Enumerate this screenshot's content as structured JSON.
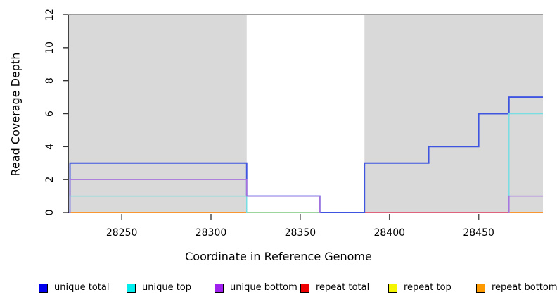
{
  "chart_data": {
    "type": "line",
    "style": "step",
    "title": "",
    "xlabel": "Coordinate in Reference Genome",
    "ylabel": "Read Coverage Depth",
    "xlim": [
      28220,
      28486
    ],
    "ylim": [
      0,
      12
    ],
    "x_ticks": [
      28250,
      28300,
      28350,
      28400,
      28450
    ],
    "y_ticks": [
      0,
      2,
      4,
      6,
      8,
      10,
      12
    ],
    "grid": false,
    "legend_position": "bottom",
    "shade_color": "#d9d9d9",
    "shaded_regions": [
      {
        "from": 28220,
        "to": 28320
      },
      {
        "from": 28386,
        "to": 28486
      }
    ],
    "top_boundary_line": {
      "depth": 12,
      "color": "#7d7d7d"
    },
    "series": [
      {
        "name": "unique total",
        "legend_color": "#0000ee",
        "line_color": "#3f55e0",
        "points": [
          [
            28220,
            0
          ],
          [
            28221,
            0
          ],
          [
            28221,
            3
          ],
          [
            28320,
            3
          ],
          [
            28320,
            1
          ],
          [
            28361,
            1
          ],
          [
            28361,
            0
          ],
          [
            28386,
            0
          ],
          [
            28386,
            3
          ],
          [
            28422,
            3
          ],
          [
            28422,
            4
          ],
          [
            28450,
            4
          ],
          [
            28450,
            6
          ],
          [
            28467,
            6
          ],
          [
            28467,
            7
          ],
          [
            28486,
            7
          ]
        ]
      },
      {
        "name": "unique top",
        "legend_color": "#00eeee",
        "line_color": "#76dde2",
        "points": [
          [
            28220,
            0
          ],
          [
            28221,
            0
          ],
          [
            28221,
            1
          ],
          [
            28320,
            1
          ],
          [
            28320,
            0
          ],
          [
            28467,
            0
          ],
          [
            28467,
            6
          ],
          [
            28486,
            6
          ]
        ],
        "visible_paths": [
          [
            [
              28220,
              0
            ],
            [
              28221,
              0
            ],
            [
              28221,
              1
            ],
            [
              28320,
              1
            ],
            [
              28320,
              0
            ]
          ],
          [
            [
              28467,
              0
            ],
            [
              28467,
              6
            ],
            [
              28486,
              6
            ]
          ]
        ]
      },
      {
        "name": "unique bottom",
        "legend_color": "#a020f0",
        "line_color": "#a873de",
        "points": [
          [
            28220,
            0
          ],
          [
            28221,
            0
          ],
          [
            28221,
            2
          ],
          [
            28320,
            2
          ],
          [
            28320,
            1
          ],
          [
            28361,
            1
          ],
          [
            28361,
            0
          ],
          [
            28467,
            0
          ],
          [
            28467,
            1
          ],
          [
            28486,
            1
          ]
        ],
        "visible_paths": [
          [
            [
              28220,
              0
            ],
            [
              28221,
              0
            ],
            [
              28221,
              2
            ],
            [
              28320,
              2
            ],
            [
              28320,
              1
            ],
            [
              28361,
              1
            ],
            [
              28361,
              0
            ]
          ],
          [
            [
              28467,
              0
            ],
            [
              28467,
              1
            ],
            [
              28486,
              1
            ]
          ]
        ]
      },
      {
        "name": "repeat total",
        "legend_color": "#ee0000",
        "line_color": "#e0506e",
        "points": [
          [
            28220,
            0
          ],
          [
            28486,
            0
          ]
        ],
        "visible_paths": []
      },
      {
        "name": "repeat top",
        "legend_color": "#f5f500",
        "line_color": "#8ecf90",
        "points": [
          [
            28220,
            0
          ],
          [
            28486,
            0
          ]
        ],
        "visible_paths": []
      },
      {
        "name": "repeat bottom",
        "legend_color": "#ff9900",
        "line_color": "#ff8c1a",
        "points": [
          [
            28220,
            0
          ],
          [
            28486,
            0
          ]
        ],
        "visible_paths": []
      }
    ],
    "baseline_segments": [
      {
        "from": 28220,
        "to": 28320,
        "color": "#ff8c1a",
        "shows": "repeat bottom"
      },
      {
        "from": 28320,
        "to": 28361,
        "color": "#8ecf90",
        "shows": "repeat top"
      },
      {
        "from": 28386,
        "to": 28467,
        "color": "#e0506e",
        "shows": "repeat total"
      },
      {
        "from": 28467,
        "to": 28486,
        "color": "#ff8c1a",
        "shows": "repeat bottom"
      }
    ]
  },
  "legend": {
    "items": [
      {
        "label": "unique total",
        "color": "#0000ee"
      },
      {
        "label": "unique top",
        "color": "#00eeee"
      },
      {
        "label": "unique bottom",
        "color": "#a020f0"
      },
      {
        "label": "repeat total",
        "color": "#ee0000"
      },
      {
        "label": "repeat top",
        "color": "#f5f500"
      },
      {
        "label": "repeat bottom",
        "color": "#ff9900"
      }
    ]
  }
}
